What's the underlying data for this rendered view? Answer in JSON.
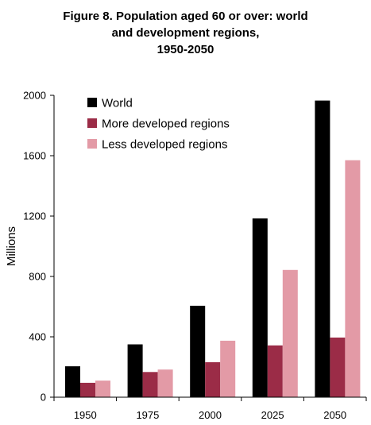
{
  "title_lines": [
    "Figure 8.  Population aged 60 or over: world",
    "and development regions,",
    "1950-2050"
  ],
  "chart_data": {
    "type": "bar",
    "title": "Figure 8.  Population aged 60 or over: world and development regions, 1950-2050",
    "xlabel": "",
    "ylabel": "Millions",
    "categories": [
      "1950",
      "1975",
      "2000",
      "2025",
      "2050"
    ],
    "series": [
      {
        "name": "World",
        "color": "#000000",
        "values": [
          205,
          350,
          606,
          1185,
          1965
        ]
      },
      {
        "name": "More developed regions",
        "color": "#9b2c47",
        "values": [
          95,
          167,
          232,
          343,
          395
        ]
      },
      {
        "name": "Less developed regions",
        "color": "#e39aa6",
        "values": [
          110,
          183,
          374,
          843,
          1570
        ]
      }
    ],
    "ylim": [
      0,
      2000
    ],
    "yticks": [
      0,
      400,
      800,
      1200,
      1600,
      2000
    ],
    "grid": false,
    "legend_position": "top-left"
  }
}
